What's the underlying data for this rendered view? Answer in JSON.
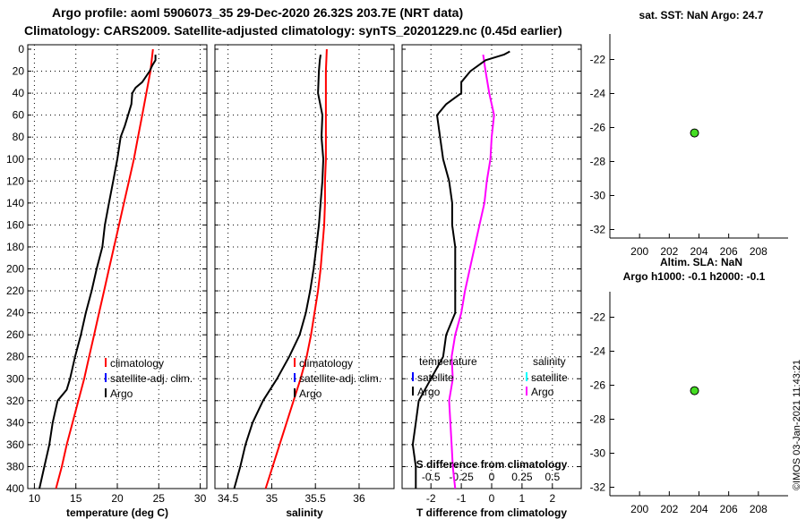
{
  "title": {
    "line1": "Argo profile: aoml 5906073_35 29-Dec-2020 26.32S 203.7E (NRT data)",
    "line2": "Climatology: CARS2009. Satellite-adjusted climatology: synTS_20201229.nc (0.45d earlier)"
  },
  "credit": "©IMOS 03-Jan-2021 11:43:21",
  "colors": {
    "argo": "#000000",
    "climatology": "#ff0000",
    "satellite_temp": "#0000ff",
    "satellite_sal": "#00ffff",
    "salinity_diff": "#ff00ff",
    "marker": "#44dd22"
  },
  "chart_data": [
    {
      "id": "temperature",
      "type": "line",
      "xlabel": "temperature (deg C)",
      "ylabel": "",
      "xlim": [
        9.2,
        30.8
      ],
      "ylim": [
        400,
        0
      ],
      "xticks": [
        "10",
        "15",
        "20",
        "25",
        "30"
      ],
      "yticks": [
        "0",
        "20",
        "40",
        "60",
        "80",
        "100",
        "120",
        "140",
        "160",
        "180",
        "200",
        "220",
        "240",
        "260",
        "280",
        "300",
        "320",
        "340",
        "360",
        "380",
        "400"
      ],
      "legend": [
        "climatology",
        "satellite-adj. clim.",
        "Argo"
      ],
      "series": [
        {
          "name": "Argo",
          "depth": [
            5,
            10,
            15,
            20,
            30,
            35,
            40,
            50,
            60,
            70,
            80,
            100,
            120,
            140,
            160,
            180,
            200,
            220,
            240,
            260,
            280,
            300,
            310,
            320,
            340,
            360,
            380,
            400
          ],
          "values": [
            24.6,
            24.6,
            24.2,
            23.9,
            23.0,
            22.2,
            21.8,
            21.7,
            21.3,
            20.9,
            20.4,
            20.0,
            19.5,
            19.0,
            18.5,
            18.2,
            17.5,
            16.9,
            16.2,
            15.6,
            14.9,
            14.3,
            13.9,
            12.8,
            12.2,
            11.8,
            11.2,
            10.6
          ]
        },
        {
          "name": "climatology",
          "depth": [
            0,
            20,
            40,
            60,
            80,
            100,
            120,
            140,
            160,
            180,
            200,
            220,
            240,
            260,
            280,
            300,
            320,
            340,
            360,
            380,
            400
          ],
          "values": [
            24.3,
            24.0,
            23.5,
            23.0,
            22.5,
            22.0,
            21.4,
            20.8,
            20.2,
            19.6,
            19.0,
            18.4,
            17.8,
            17.2,
            16.6,
            16.0,
            15.3,
            14.6,
            13.9,
            13.3,
            12.6
          ]
        }
      ]
    },
    {
      "id": "salinity",
      "type": "line",
      "xlabel": "salinity",
      "ylabel": "",
      "xlim": [
        34.35,
        36.4
      ],
      "ylim": [
        400,
        0
      ],
      "xticks": [
        "34.5",
        "35",
        "35.5",
        "36"
      ],
      "legend": [
        "climatology",
        "satellite-adj. clim.",
        "Argo"
      ],
      "series": [
        {
          "name": "Argo",
          "depth": [
            5,
            10,
            20,
            40,
            60,
            80,
            100,
            120,
            140,
            160,
            180,
            200,
            220,
            240,
            260,
            280,
            300,
            320,
            340,
            360,
            380,
            400
          ],
          "values": [
            35.56,
            35.55,
            35.54,
            35.53,
            35.58,
            35.57,
            35.59,
            35.58,
            35.56,
            35.54,
            35.51,
            35.48,
            35.44,
            35.39,
            35.32,
            35.2,
            35.06,
            34.9,
            34.78,
            34.7,
            34.64,
            34.57
          ]
        },
        {
          "name": "climatology",
          "depth": [
            0,
            20,
            40,
            60,
            80,
            100,
            120,
            140,
            160,
            180,
            200,
            220,
            240,
            260,
            280,
            300,
            320,
            340,
            360,
            380,
            400
          ],
          "values": [
            35.63,
            35.62,
            35.62,
            35.62,
            35.62,
            35.62,
            35.61,
            35.61,
            35.6,
            35.58,
            35.56,
            35.53,
            35.49,
            35.45,
            35.4,
            35.33,
            35.25,
            35.17,
            35.09,
            35.01,
            34.93
          ]
        }
      ]
    },
    {
      "id": "difference",
      "type": "line",
      "xlabel": "T difference from climatology",
      "top_label": "S difference from climatology",
      "xlim": [
        -2.95,
        2.95
      ],
      "ylim": [
        400,
        0
      ],
      "xticks_T": [
        "-2",
        "-1",
        "0",
        "1",
        "2"
      ],
      "xticks_S": [
        "-0.5",
        "-0.25",
        "0",
        "0.25",
        "0.5"
      ],
      "legend_temperature": {
        "title": "temperature",
        "items": [
          "satellite",
          "Argo"
        ]
      },
      "legend_salinity": {
        "title": "salinity",
        "items": [
          "satellite",
          "Argo"
        ]
      },
      "series": [
        {
          "name": "T difference (Argo)",
          "depth": [
            2,
            5,
            10,
            20,
            30,
            40,
            50,
            60,
            80,
            100,
            120,
            140,
            160,
            180,
            200,
            220,
            240,
            260,
            280,
            300,
            320,
            340,
            360,
            380,
            400
          ],
          "values": [
            0.6,
            0.4,
            -0.2,
            -0.7,
            -1.0,
            -1.0,
            -1.5,
            -1.8,
            -1.7,
            -1.6,
            -1.4,
            -1.3,
            -1.3,
            -1.2,
            -1.2,
            -1.2,
            -1.2,
            -1.5,
            -1.6,
            -2.0,
            -2.4,
            -2.5,
            -2.6,
            -2.5,
            -2.5
          ]
        },
        {
          "name": "S difference (Argo)",
          "depth": [
            5,
            20,
            40,
            60,
            80,
            100,
            120,
            140,
            160,
            180,
            200,
            220,
            240,
            260,
            280,
            300,
            320,
            340,
            360,
            380,
            400
          ],
          "values": [
            -0.07,
            -0.05,
            -0.02,
            0.02,
            0.0,
            -0.01,
            -0.04,
            -0.06,
            -0.1,
            -0.14,
            -0.18,
            -0.22,
            -0.25,
            -0.3,
            -0.33,
            -0.32,
            -0.35,
            -0.34,
            -0.33,
            -0.32,
            -0.3
          ]
        }
      ]
    },
    {
      "id": "sst_map",
      "type": "scatter",
      "title": "sat. SST: NaN Argo: 24.7",
      "xlim": [
        198,
        210
      ],
      "ylim": [
        -32.5,
        -20.5
      ],
      "xticks": [
        "200",
        "202",
        "204",
        "206",
        "208"
      ],
      "yticks": [
        "-22",
        "-24",
        "-26",
        "-28",
        "-30",
        "-32"
      ],
      "points": [
        {
          "x": 203.7,
          "y": -26.32
        }
      ]
    },
    {
      "id": "sla_map",
      "type": "scatter",
      "title": "Altim. SLA: NaN",
      "subtitle": "Argo h1000: -0.1 h2000: -0.1",
      "xlim": [
        198,
        210
      ],
      "ylim": [
        -32.5,
        -20.5
      ],
      "xticks": [
        "200",
        "202",
        "204",
        "206",
        "208"
      ],
      "yticks": [
        "-22",
        "-24",
        "-26",
        "-28",
        "-30",
        "-32"
      ],
      "points": [
        {
          "x": 203.7,
          "y": -26.32
        }
      ]
    }
  ]
}
